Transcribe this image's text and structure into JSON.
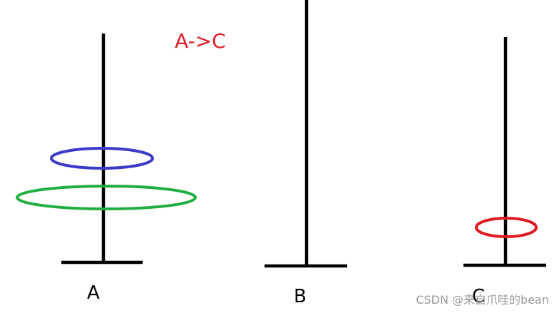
{
  "move_label": "A->C",
  "pegs": [
    {
      "label": "A"
    },
    {
      "label": "B"
    },
    {
      "label": "C"
    }
  ],
  "disks": [
    {
      "peg": "A",
      "color": "#3b3bc8"
    },
    {
      "peg": "A",
      "color": "#1fae3f"
    },
    {
      "peg": "C",
      "color": "#e01b24"
    }
  ],
  "colors": {
    "move_label": "#e01b24",
    "pole": "#000000"
  },
  "watermark": "CSDN @来自爪哇的bean"
}
